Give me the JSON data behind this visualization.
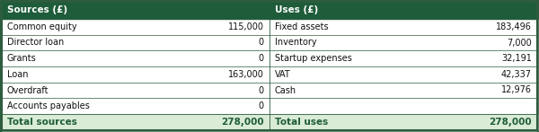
{
  "header_bg": "#1e5c3a",
  "header_text_color": "#ffffff",
  "row_bg": "#ffffff",
  "total_bg": "#daecd6",
  "total_text_color": "#1e5c3a",
  "border_color": "#2d5c3e",
  "body_text_color": "#111111",
  "col1_header": "Sources (£)",
  "col2_header": "Uses (£)",
  "sources_rows": [
    [
      "Common equity",
      "115,000"
    ],
    [
      "Director loan",
      "0"
    ],
    [
      "Grants",
      "0"
    ],
    [
      "Loan",
      "163,000"
    ],
    [
      "Overdraft",
      "0"
    ],
    [
      "Accounts payables",
      "0"
    ]
  ],
  "uses_rows": [
    [
      "Fixed assets",
      "183,496"
    ],
    [
      "Inventory",
      "7,000"
    ],
    [
      "Startup expenses",
      "32,191"
    ],
    [
      "VAT",
      "42,337"
    ],
    [
      "Cash",
      "12,976"
    ],
    [
      "",
      ""
    ]
  ],
  "total_sources_label": "Total sources",
  "total_sources_value": "278,000",
  "total_uses_label": "Total uses",
  "total_uses_value": "278,000",
  "figwidth": 6.0,
  "figheight": 1.47,
  "dpi": 100
}
